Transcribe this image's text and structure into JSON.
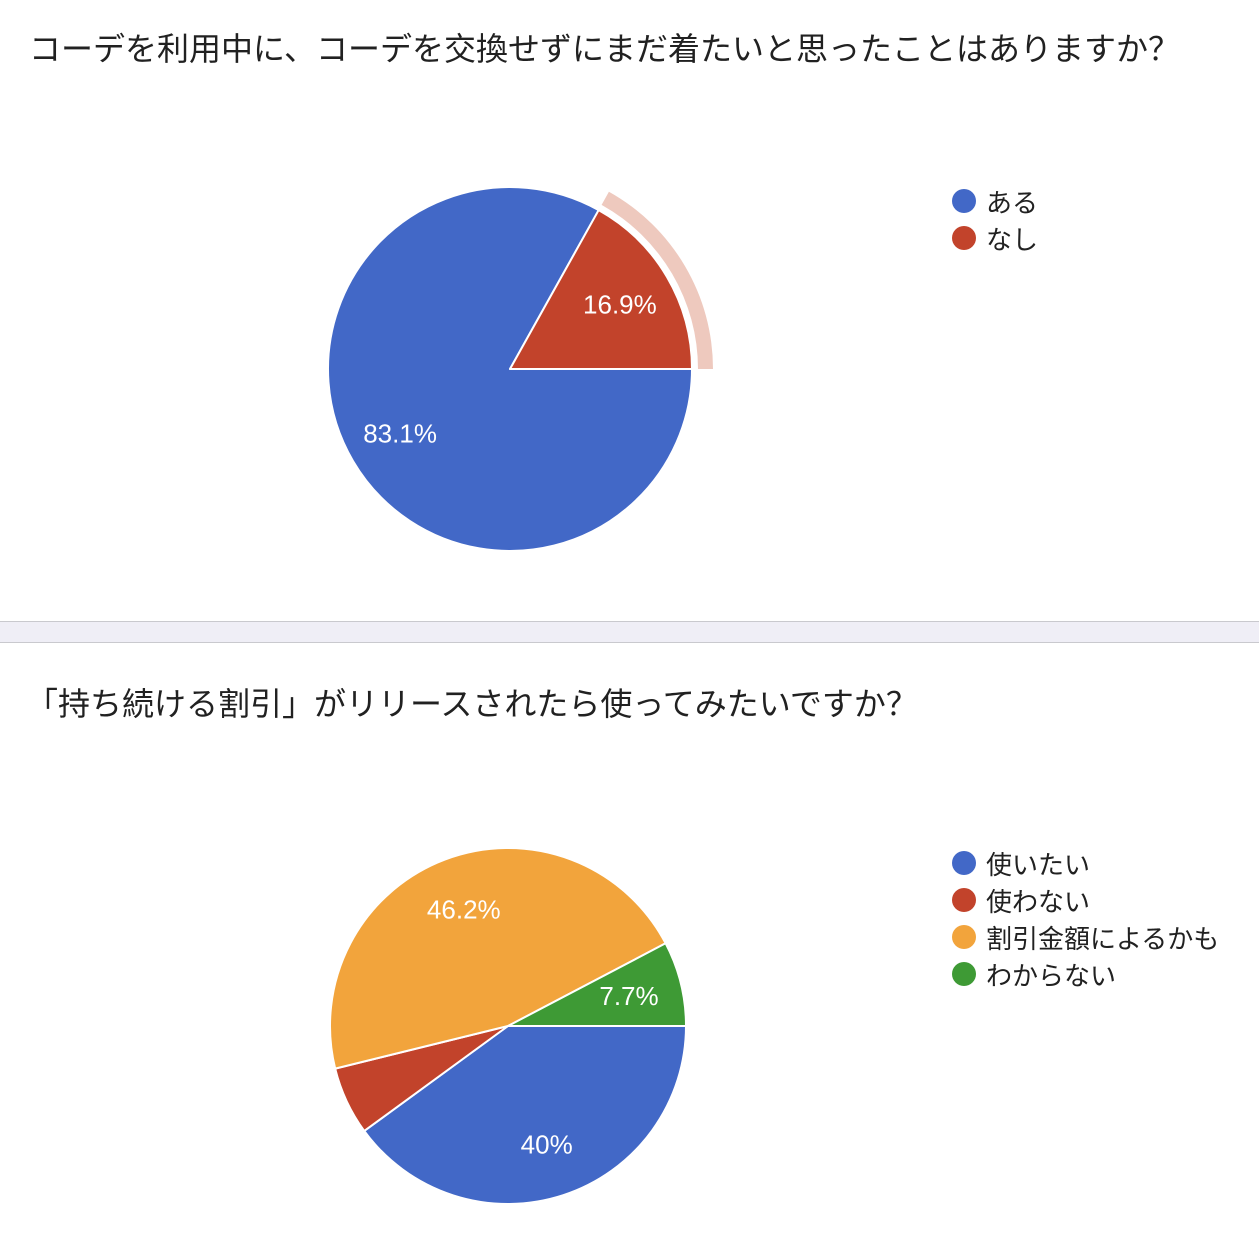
{
  "chart_data": [
    {
      "type": "pie",
      "title": "コーデを利用中に、コーデを交換せずにまだ着たいと思ったことはありますか？",
      "categories": [
        "ある",
        "なし"
      ],
      "values": [
        83.1,
        16.9
      ],
      "slice_labels": [
        "83.1%",
        "16.9%"
      ],
      "colors": [
        "#4268C7",
        "#C2432B"
      ],
      "label_color": "#ffffff",
      "highlighted_slice": 1,
      "highlight_color": "#EEC9BE",
      "legend_position": "right",
      "start_angle_deg": 0,
      "direction": "clockwise"
    },
    {
      "type": "pie",
      "title": "「持ち続ける割引」がリリースされたら使ってみたいですか？",
      "categories": [
        "使いたい",
        "使わない",
        "割引金額によるかも",
        "わからない"
      ],
      "values": [
        40,
        6.2,
        46.2,
        7.7
      ],
      "slice_labels": [
        "40%",
        "",
        "46.2%",
        "7.7%"
      ],
      "colors": [
        "#4268C7",
        "#C2432B",
        "#F2A43C",
        "#3E9A35"
      ],
      "label_color": "#ffffff",
      "highlighted_slice": null,
      "highlight_color": null,
      "legend_position": "right",
      "start_angle_deg": 0,
      "direction": "clockwise"
    }
  ]
}
